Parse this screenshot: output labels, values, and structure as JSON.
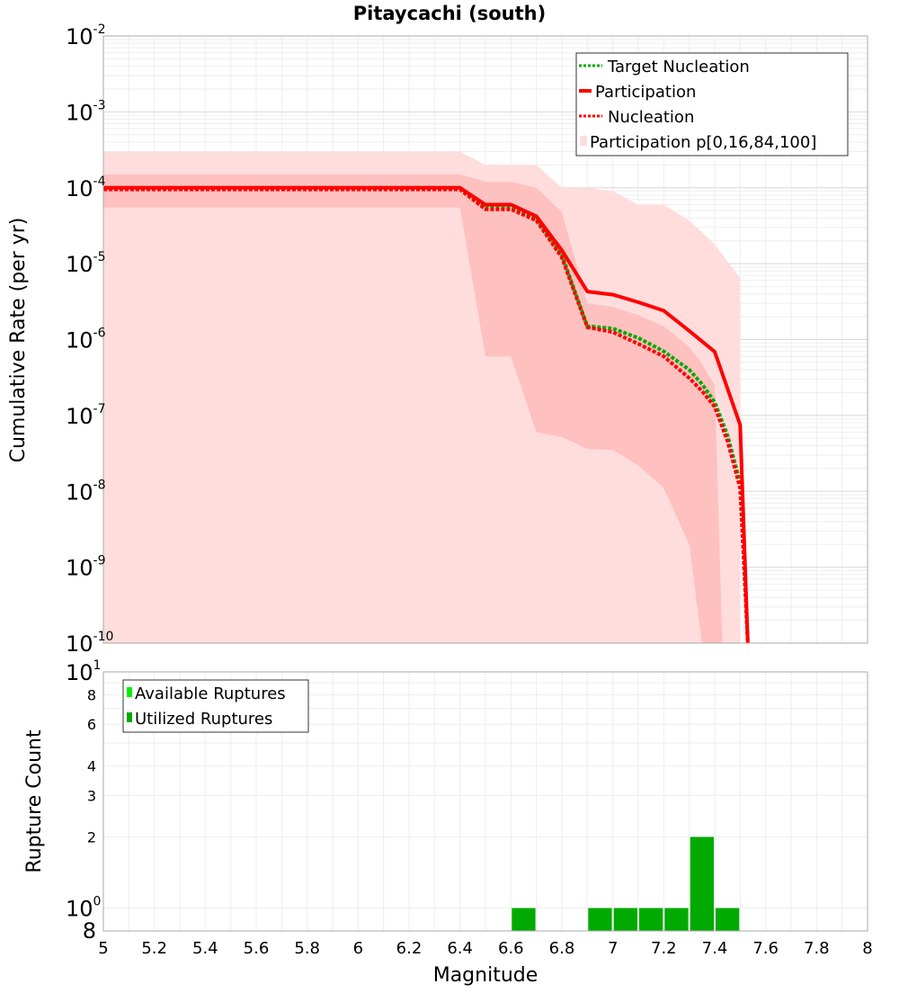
{
  "chart_data": [
    {
      "type": "line",
      "title": "Pitaycachi (south)",
      "xlabel": "",
      "ylabel": "Cumulative Rate (per yr)",
      "xlim": [
        5,
        8
      ],
      "ylim": [
        1e-10,
        0.01
      ],
      "yscale": "log",
      "grid": true,
      "legend_position": "top-right",
      "y_tick_exponents": [
        "-2",
        "-3",
        "-4",
        "-5",
        "-6",
        "-7",
        "-8",
        "-9",
        "-10"
      ],
      "y_tick_base": "10",
      "series": [
        {
          "name": "Target Nucleation",
          "style": "dotted",
          "color": "#00aa00",
          "x": [
            5.0,
            6.4,
            6.5,
            6.6,
            6.7,
            6.8,
            6.9,
            7.0,
            7.1,
            7.2,
            7.3,
            7.35,
            7.4,
            7.45,
            7.5,
            7.53
          ],
          "y": [
            0.0001,
            0.0001,
            5.5e-05,
            5.5e-05,
            3.9e-05,
            1.3e-05,
            1.5e-06,
            1.4e-06,
            1.05e-06,
            7e-07,
            4e-07,
            2.6e-07,
            1.5e-07,
            5.5e-08,
            1.3e-08,
            1e-10
          ]
        },
        {
          "name": "Participation",
          "style": "solid",
          "color": "#ff0000",
          "x": [
            5.0,
            6.4,
            6.5,
            6.6,
            6.7,
            6.8,
            6.9,
            7.0,
            7.1,
            7.2,
            7.3,
            7.4,
            7.5,
            7.53
          ],
          "y": [
            0.0001,
            0.0001,
            6e-05,
            6e-05,
            4.2e-05,
            1.5e-05,
            4.3e-06,
            3.9e-06,
            3.1e-06,
            2.4e-06,
            1.3e-06,
            6.9e-07,
            7.5e-08,
            1e-10
          ]
        },
        {
          "name": "Nucleation",
          "style": "dotted",
          "color": "#ff0000",
          "x": [
            5.0,
            6.4,
            6.5,
            6.6,
            6.7,
            6.8,
            6.9,
            7.0,
            7.1,
            7.2,
            7.3,
            7.35,
            7.4,
            7.45,
            7.5,
            7.53
          ],
          "y": [
            9.5e-05,
            9.5e-05,
            5.2e-05,
            5.2e-05,
            3.7e-05,
            1.2e-05,
            1.45e-06,
            1.25e-06,
            8.8e-07,
            6e-07,
            3.1e-07,
            2.1e-07,
            1.3e-07,
            4.6e-08,
            1.1e-08,
            1e-10
          ]
        },
        {
          "name": "Participation p[0,16,84,100]",
          "type": "band",
          "color": "#ffdddd",
          "outer": {
            "x": [
              5.0,
              6.4,
              6.5,
              6.6,
              6.7,
              6.8,
              6.9,
              7.0,
              7.1,
              7.2,
              7.3,
              7.4,
              7.5
            ],
            "upper": [
              0.0003,
              0.0003,
              0.0002,
              0.0002,
              0.0002,
              0.0001,
              0.0001,
              9e-05,
              6e-05,
              6e-05,
              3.7e-05,
              1.8e-05,
              6.5e-06
            ],
            "lower": [
              1e-10,
              1e-10,
              1e-10,
              1e-10,
              1e-10,
              1e-10,
              1e-10,
              1e-10,
              1e-10,
              1e-10,
              1e-10,
              1e-10,
              1e-10
            ]
          },
          "inner": {
            "x": [
              5.0,
              6.4,
              6.5,
              6.6,
              6.7,
              6.8,
              6.9,
              7.0,
              7.1,
              7.2,
              7.3,
              7.35,
              7.4,
              7.43
            ],
            "upper": [
              0.00015,
              0.00015,
              0.00012,
              0.00012,
              0.0001,
              4.8e-05,
              3e-06,
              2.7e-06,
              2.1e-06,
              1.5e-06,
              8e-07,
              4.8e-07,
              2.5e-07,
              1e-10
            ],
            "lower": [
              5.5e-05,
              5.5e-05,
              6e-07,
              6e-07,
              6e-08,
              5.2e-08,
              3.6e-08,
              3.5e-08,
              2.2e-08,
              1.1e-08,
              2e-09,
              1e-10,
              1e-10,
              1e-10
            ]
          }
        }
      ]
    },
    {
      "type": "bar",
      "title": "",
      "xlabel": "Magnitude",
      "ylabel": "Rupture Count",
      "xlim": [
        5,
        8
      ],
      "ylim": [
        0.8,
        10
      ],
      "yscale": "log",
      "grid": true,
      "legend_position": "top-left",
      "x_ticks": [
        "5",
        "5.2",
        "5.4",
        "5.6",
        "5.8",
        "6",
        "6.2",
        "6.4",
        "6.6",
        "6.8",
        "7",
        "7.2",
        "7.4",
        "7.6",
        "7.8",
        "8"
      ],
      "y_ticks_minor": [
        "8",
        "6",
        "4",
        "3",
        "2"
      ],
      "y_tick_base": "10",
      "y_tick_exponents": [
        "1",
        "0"
      ],
      "y_bottom_label": "8",
      "bin_width": 0.1,
      "series": [
        {
          "name": "Available Ruptures",
          "color": "#00ee00",
          "x": [
            6.65,
            6.95,
            7.05,
            7.15,
            7.25,
            7.35,
            7.45
          ],
          "values": [
            1,
            1,
            1,
            1,
            1,
            2,
            1
          ]
        },
        {
          "name": "Utilized Ruptures",
          "color": "#00aa00",
          "x": [
            6.65,
            6.95,
            7.05,
            7.15,
            7.25,
            7.35,
            7.45
          ],
          "values": [
            1,
            1,
            1,
            1,
            1,
            2,
            1
          ]
        }
      ]
    }
  ]
}
